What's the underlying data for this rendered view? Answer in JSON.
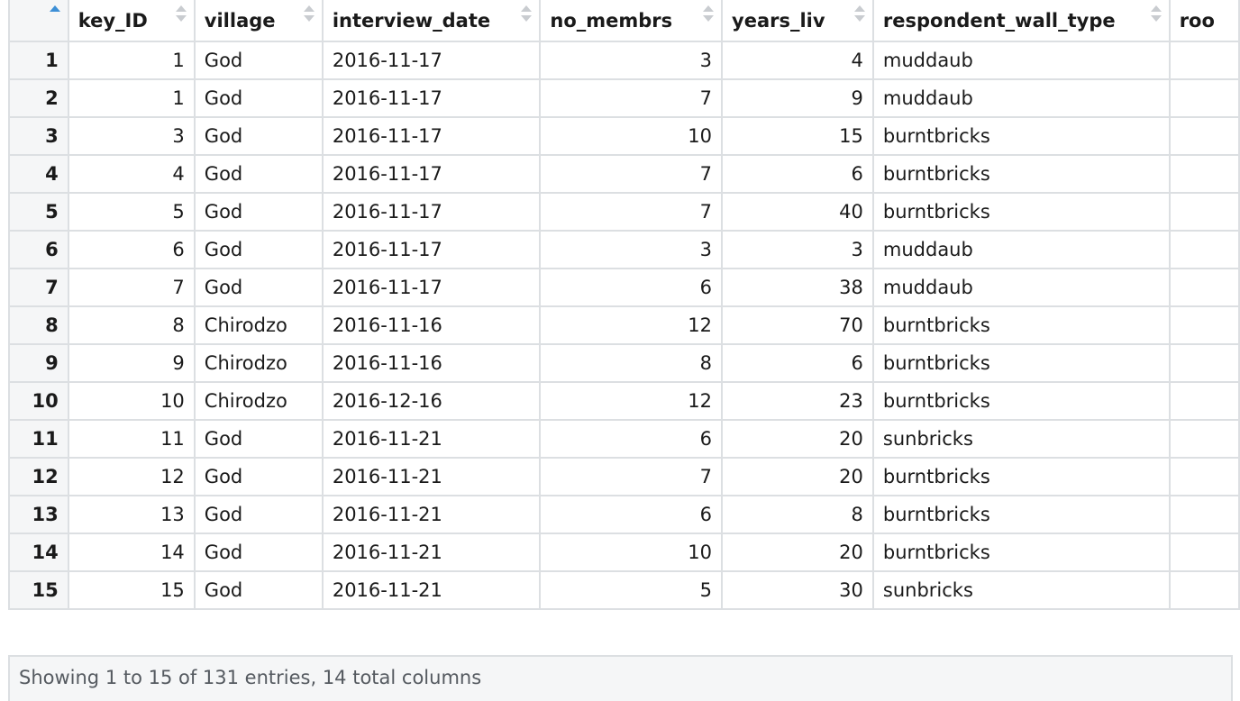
{
  "columns": [
    {
      "key": "rownum",
      "label": "",
      "align": "right",
      "sort": "asc"
    },
    {
      "key": "key_id",
      "label": "key_ID",
      "align": "right"
    },
    {
      "key": "village",
      "label": "village",
      "align": "left"
    },
    {
      "key": "interview_date",
      "label": "interview_date",
      "align": "left"
    },
    {
      "key": "no_membrs",
      "label": "no_membrs",
      "align": "right"
    },
    {
      "key": "years_liv",
      "label": "years_liv",
      "align": "right"
    },
    {
      "key": "respondent_wall_type",
      "label": "respondent_wall_type",
      "align": "left"
    },
    {
      "key": "rooms",
      "label": "roo",
      "align": "left"
    }
  ],
  "rows": [
    {
      "rownum": "1",
      "key_id": "1",
      "village": "God",
      "interview_date": "2016-11-17",
      "no_membrs": "3",
      "years_liv": "4",
      "respondent_wall_type": "muddaub",
      "rooms": ""
    },
    {
      "rownum": "2",
      "key_id": "1",
      "village": "God",
      "interview_date": "2016-11-17",
      "no_membrs": "7",
      "years_liv": "9",
      "respondent_wall_type": "muddaub",
      "rooms": ""
    },
    {
      "rownum": "3",
      "key_id": "3",
      "village": "God",
      "interview_date": "2016-11-17",
      "no_membrs": "10",
      "years_liv": "15",
      "respondent_wall_type": "burntbricks",
      "rooms": ""
    },
    {
      "rownum": "4",
      "key_id": "4",
      "village": "God",
      "interview_date": "2016-11-17",
      "no_membrs": "7",
      "years_liv": "6",
      "respondent_wall_type": "burntbricks",
      "rooms": ""
    },
    {
      "rownum": "5",
      "key_id": "5",
      "village": "God",
      "interview_date": "2016-11-17",
      "no_membrs": "7",
      "years_liv": "40",
      "respondent_wall_type": "burntbricks",
      "rooms": ""
    },
    {
      "rownum": "6",
      "key_id": "6",
      "village": "God",
      "interview_date": "2016-11-17",
      "no_membrs": "3",
      "years_liv": "3",
      "respondent_wall_type": "muddaub",
      "rooms": ""
    },
    {
      "rownum": "7",
      "key_id": "7",
      "village": "God",
      "interview_date": "2016-11-17",
      "no_membrs": "6",
      "years_liv": "38",
      "respondent_wall_type": "muddaub",
      "rooms": ""
    },
    {
      "rownum": "8",
      "key_id": "8",
      "village": "Chirodzo",
      "interview_date": "2016-11-16",
      "no_membrs": "12",
      "years_liv": "70",
      "respondent_wall_type": "burntbricks",
      "rooms": ""
    },
    {
      "rownum": "9",
      "key_id": "9",
      "village": "Chirodzo",
      "interview_date": "2016-11-16",
      "no_membrs": "8",
      "years_liv": "6",
      "respondent_wall_type": "burntbricks",
      "rooms": ""
    },
    {
      "rownum": "10",
      "key_id": "10",
      "village": "Chirodzo",
      "interview_date": "2016-12-16",
      "no_membrs": "12",
      "years_liv": "23",
      "respondent_wall_type": "burntbricks",
      "rooms": ""
    },
    {
      "rownum": "11",
      "key_id": "11",
      "village": "God",
      "interview_date": "2016-11-21",
      "no_membrs": "6",
      "years_liv": "20",
      "respondent_wall_type": "sunbricks",
      "rooms": ""
    },
    {
      "rownum": "12",
      "key_id": "12",
      "village": "God",
      "interview_date": "2016-11-21",
      "no_membrs": "7",
      "years_liv": "20",
      "respondent_wall_type": "burntbricks",
      "rooms": ""
    },
    {
      "rownum": "13",
      "key_id": "13",
      "village": "God",
      "interview_date": "2016-11-21",
      "no_membrs": "6",
      "years_liv": "8",
      "respondent_wall_type": "burntbricks",
      "rooms": ""
    },
    {
      "rownum": "14",
      "key_id": "14",
      "village": "God",
      "interview_date": "2016-11-21",
      "no_membrs": "10",
      "years_liv": "20",
      "respondent_wall_type": "burntbricks",
      "rooms": ""
    },
    {
      "rownum": "15",
      "key_id": "15",
      "village": "God",
      "interview_date": "2016-11-21",
      "no_membrs": "5",
      "years_liv": "30",
      "respondent_wall_type": "sunbricks",
      "rooms": ""
    }
  ],
  "footer": {
    "summary": "Showing 1 to 15 of 131 entries, 14 total columns"
  },
  "colors": {
    "sort_active": "#3d8fd6",
    "sort_inactive": "#c9ccd0",
    "border": "#dcdfe2",
    "row_header_bg": "#f5f6f7"
  }
}
